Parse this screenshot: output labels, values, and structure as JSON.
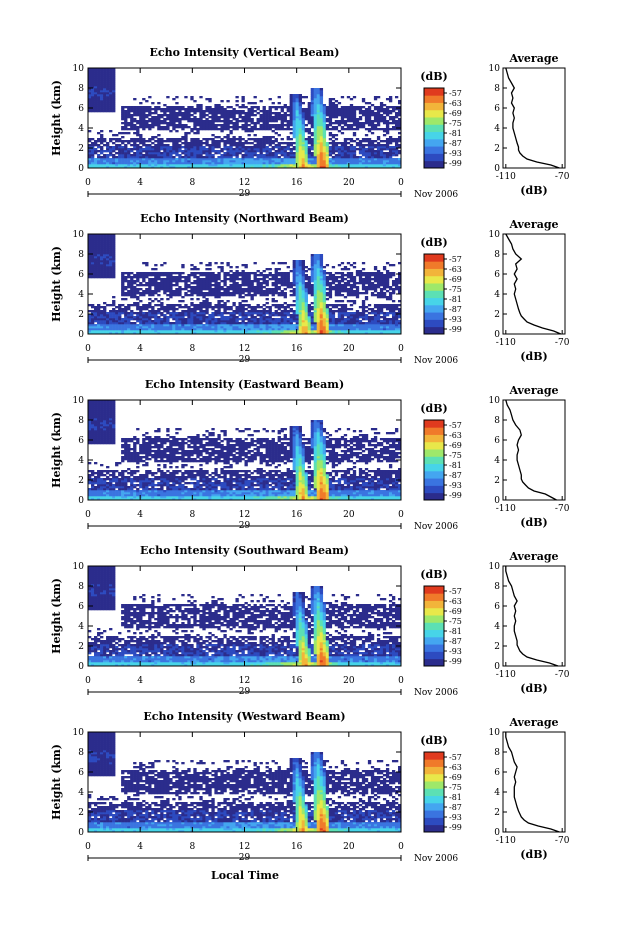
{
  "chart_data": [
    {
      "type": "heatmap",
      "title": "Echo Intensity (Vertical Beam)",
      "ylabel": "Height (km)",
      "y_ticks": [
        "0",
        "2",
        "4",
        "6",
        "8",
        "10"
      ],
      "x_ticks": [
        "0",
        "4",
        "8",
        "12",
        "16",
        "20",
        "0"
      ],
      "day_label": "29",
      "date_label": "Nov 2006",
      "ylim": [
        0,
        10
      ],
      "xlim": [
        0,
        24
      ],
      "colorbar": {
        "unit": "(dB)",
        "ticks": [
          "-57",
          "-63",
          "-69",
          "-75",
          "-81",
          "-87",
          "-93",
          "-99"
        ],
        "range": [
          -102,
          -54
        ]
      },
      "average_panel": {
        "title": "Average",
        "xlabel": "(dB)",
        "x_ticks": [
          "-110",
          "-70"
        ],
        "xlim": [
          -112,
          -68
        ],
        "profile_h": [
          0,
          0.3,
          0.6,
          0.9,
          1.2,
          1.5,
          1.8,
          2.1,
          2.5,
          3,
          3.5,
          4,
          4.5,
          5,
          5.5,
          6,
          6.5,
          7,
          7.5,
          8,
          8.5,
          9,
          9.5,
          10
        ],
        "profile_db": [
          -72,
          -78,
          -88,
          -95,
          -98,
          -100,
          -101,
          -101,
          -102,
          -103,
          -104,
          -105,
          -105,
          -104,
          -105,
          -104,
          -106,
          -105,
          -106,
          -104,
          -106,
          -108,
          -109,
          -110
        ]
      }
    },
    {
      "type": "heatmap",
      "title": "Echo Intensity (Northward Beam)",
      "ylabel": "Height (km)",
      "y_ticks": [
        "0",
        "2",
        "4",
        "6",
        "8",
        "10"
      ],
      "x_ticks": [
        "0",
        "4",
        "8",
        "12",
        "16",
        "20",
        "0"
      ],
      "day_label": "29",
      "date_label": "Nov 2006",
      "ylim": [
        0,
        10
      ],
      "xlim": [
        0,
        24
      ],
      "colorbar": {
        "unit": "(dB)",
        "ticks": [
          "-57",
          "-63",
          "-69",
          "-75",
          "-81",
          "-87",
          "-93",
          "-99"
        ],
        "range": [
          -102,
          -54
        ]
      },
      "average_panel": {
        "title": "Average",
        "xlabel": "(dB)",
        "x_ticks": [
          "-110",
          "-70"
        ],
        "xlim": [
          -112,
          -68
        ],
        "profile_h": [
          0,
          0.3,
          0.6,
          0.9,
          1.2,
          1.5,
          1.8,
          2.1,
          2.5,
          3,
          3.5,
          4,
          4.5,
          5,
          5.5,
          6,
          6.5,
          7,
          7.5,
          8,
          8.5,
          9,
          9.5,
          10
        ],
        "profile_db": [
          -71,
          -76,
          -84,
          -90,
          -95,
          -97,
          -99,
          -100,
          -101,
          -102,
          -103,
          -104,
          -103,
          -104,
          -102,
          -104,
          -102,
          -103,
          -99,
          -103,
          -105,
          -106,
          -108,
          -110
        ]
      }
    },
    {
      "type": "heatmap",
      "title": "Echo Intensity (Eastward Beam)",
      "ylabel": "Height (km)",
      "y_ticks": [
        "0",
        "2",
        "4",
        "6",
        "8",
        "10"
      ],
      "x_ticks": [
        "0",
        "4",
        "8",
        "12",
        "16",
        "20",
        "0"
      ],
      "day_label": "29",
      "date_label": "Nov 2006",
      "ylim": [
        0,
        10
      ],
      "xlim": [
        0,
        24
      ],
      "colorbar": {
        "unit": "(dB)",
        "ticks": [
          "-57",
          "-63",
          "-69",
          "-75",
          "-81",
          "-87",
          "-93",
          "-99"
        ],
        "range": [
          -102,
          -54
        ]
      },
      "average_panel": {
        "title": "Average",
        "xlabel": "(dB)",
        "x_ticks": [
          "-110",
          "-70"
        ],
        "xlim": [
          -112,
          -68
        ],
        "profile_h": [
          0,
          0.3,
          0.6,
          0.9,
          1.2,
          1.5,
          1.8,
          2.1,
          2.5,
          3,
          3.5,
          4,
          4.5,
          5,
          5.5,
          6,
          6.5,
          7,
          7.5,
          8,
          8.5,
          9,
          9.5,
          10
        ],
        "profile_db": [
          -74,
          -78,
          -82,
          -90,
          -94,
          -96,
          -98,
          -99,
          -99,
          -100,
          -101,
          -102,
          -102,
          -101,
          -102,
          -101,
          -99,
          -100,
          -103,
          -105,
          -106,
          -107,
          -109,
          -110
        ]
      }
    },
    {
      "type": "heatmap",
      "title": "Echo Intensity (Southward Beam)",
      "ylabel": "Height (km)",
      "y_ticks": [
        "0",
        "2",
        "4",
        "6",
        "8",
        "10"
      ],
      "x_ticks": [
        "0",
        "4",
        "8",
        "12",
        "16",
        "20",
        "0"
      ],
      "day_label": "29",
      "date_label": "Nov 2006",
      "ylim": [
        0,
        10
      ],
      "xlim": [
        0,
        24
      ],
      "colorbar": {
        "unit": "(dB)",
        "ticks": [
          "-57",
          "-63",
          "-69",
          "-75",
          "-81",
          "-87",
          "-93",
          "-99"
        ],
        "range": [
          -102,
          -54
        ]
      },
      "average_panel": {
        "title": "Average",
        "xlabel": "(dB)",
        "x_ticks": [
          "-110",
          "-70"
        ],
        "xlim": [
          -112,
          -68
        ],
        "profile_h": [
          0,
          0.3,
          0.6,
          0.9,
          1.2,
          1.5,
          1.8,
          2.1,
          2.5,
          3,
          3.5,
          4,
          4.5,
          5,
          5.5,
          6,
          6.5,
          7,
          7.5,
          8,
          8.5,
          9,
          9.5,
          10
        ],
        "profile_db": [
          -73,
          -79,
          -88,
          -95,
          -98,
          -100,
          -101,
          -102,
          -102,
          -103,
          -104,
          -104,
          -103,
          -104,
          -103,
          -104,
          -102,
          -104,
          -105,
          -106,
          -108,
          -109,
          -110,
          -110
        ]
      }
    },
    {
      "type": "heatmap",
      "title": "Echo Intensity (Westward Beam)",
      "ylabel": "Height (km)",
      "y_ticks": [
        "0",
        "2",
        "4",
        "6",
        "8",
        "10"
      ],
      "x_ticks": [
        "0",
        "4",
        "8",
        "12",
        "16",
        "20",
        "0"
      ],
      "day_label": "29",
      "date_label": "Nov 2006",
      "ylim": [
        0,
        10
      ],
      "xlim": [
        0,
        24
      ],
      "colorbar": {
        "unit": "(dB)",
        "ticks": [
          "-57",
          "-63",
          "-69",
          "-75",
          "-81",
          "-87",
          "-93",
          "-99"
        ],
        "range": [
          -102,
          -54
        ]
      },
      "average_panel": {
        "title": "Average",
        "xlabel": "(dB)",
        "x_ticks": [
          "-110",
          "-70"
        ],
        "xlim": [
          -112,
          -68
        ],
        "profile_h": [
          0,
          0.3,
          0.6,
          0.9,
          1.2,
          1.5,
          1.8,
          2.1,
          2.5,
          3,
          3.5,
          4,
          4.5,
          5,
          5.5,
          6,
          6.5,
          7,
          7.5,
          8,
          8.5,
          9,
          9.5,
          10
        ],
        "profile_db": [
          -72,
          -78,
          -87,
          -94,
          -97,
          -99,
          -100,
          -101,
          -102,
          -103,
          -104,
          -104,
          -104,
          -103,
          -104,
          -103,
          -102,
          -104,
          -105,
          -106,
          -108,
          -109,
          -110,
          -110
        ]
      }
    }
  ],
  "figure": {
    "xlabel": "Local Time",
    "colors": {
      "colormap": [
        "#2b2c8c",
        "#2d4bc0",
        "#3a74e0",
        "#44a6f0",
        "#47d4e8",
        "#5ce0b4",
        "#9ee86a",
        "#e8e84a",
        "#f2b43a",
        "#f07a2a",
        "#e03a1e"
      ],
      "axes": "#000000",
      "background": "#ffffff"
    }
  }
}
